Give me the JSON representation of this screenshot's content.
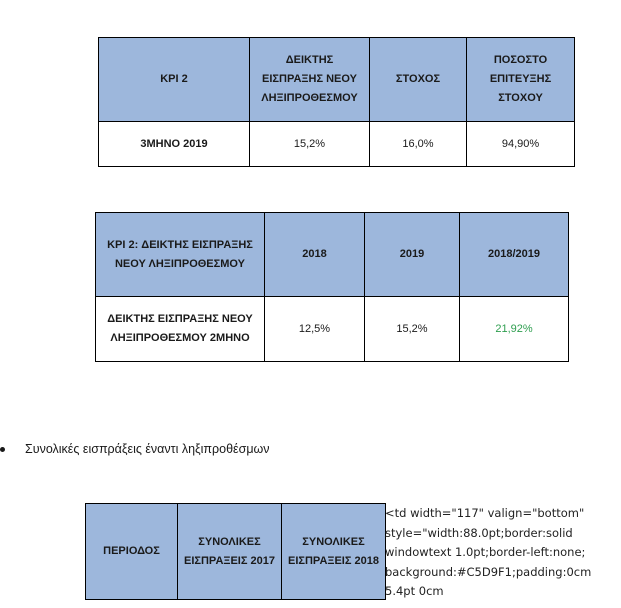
{
  "table1": {
    "header": [
      "KPI 2",
      "ΔΕΙΚΤΗΣ ΕΙΣΠΡΑΞΗΣ ΝΕΟΥ ΛΗΞΙΠΡΟΘΕΣΜΟΥ",
      "ΣΤΟΧΟΣ",
      "ΠΟΣΟΣΤΟ ΕΠΙΤΕΥΞΗΣ ΣΤΟΧΟΥ"
    ],
    "row": [
      "3ΜΗΝΟ 2019",
      "15,2%",
      "16,0%",
      "94,90%"
    ]
  },
  "table2": {
    "header": [
      "KPI 2: ΔΕΙΚΤΗΣ ΕΙΣΠΡΑΞΗΣ ΝΕΟΥ ΛΗΞΙΠΡΟΘΕΣΜΟΥ",
      "2018",
      "2019",
      "2018/2019"
    ],
    "row": [
      "ΔΕΙΚΤΗΣ ΕΙΣΠΡΑΞΗΣ ΝΕΟΥ ΛΗΞΙΠΡΟΘΕΣΜΟΥ 2ΜΗΝΟ",
      "12,5%",
      "15,2%",
      "21,92%"
    ],
    "positive_color": "#2e9e4f"
  },
  "bullet": {
    "text": "Συνολικές εισπράξεις έναντι ληξιπροθέσμων"
  },
  "table3": {
    "header": [
      "ΠΕΡΙΟΔΟΣ",
      "ΣΥΝΟΛΙΚΕΣ ΕΙΣΠΡΑΞΕΙΣ 2017",
      "ΣΥΝΟΛΙΚΕΣ ΕΙΣΠΡΑΞΕΙΣ 2018"
    ]
  },
  "raw_markup": {
    "text": "<td width=\"117\" valign=\"bottom\"\nstyle=\"width:88.0pt;border:solid\nwindowtext 1.0pt;border-left:none;\nbackground:#C5D9F1;padding:0cm\n5.4pt 0cm"
  },
  "colors": {
    "header_fill": "#9db7dc",
    "border": "#000000"
  }
}
